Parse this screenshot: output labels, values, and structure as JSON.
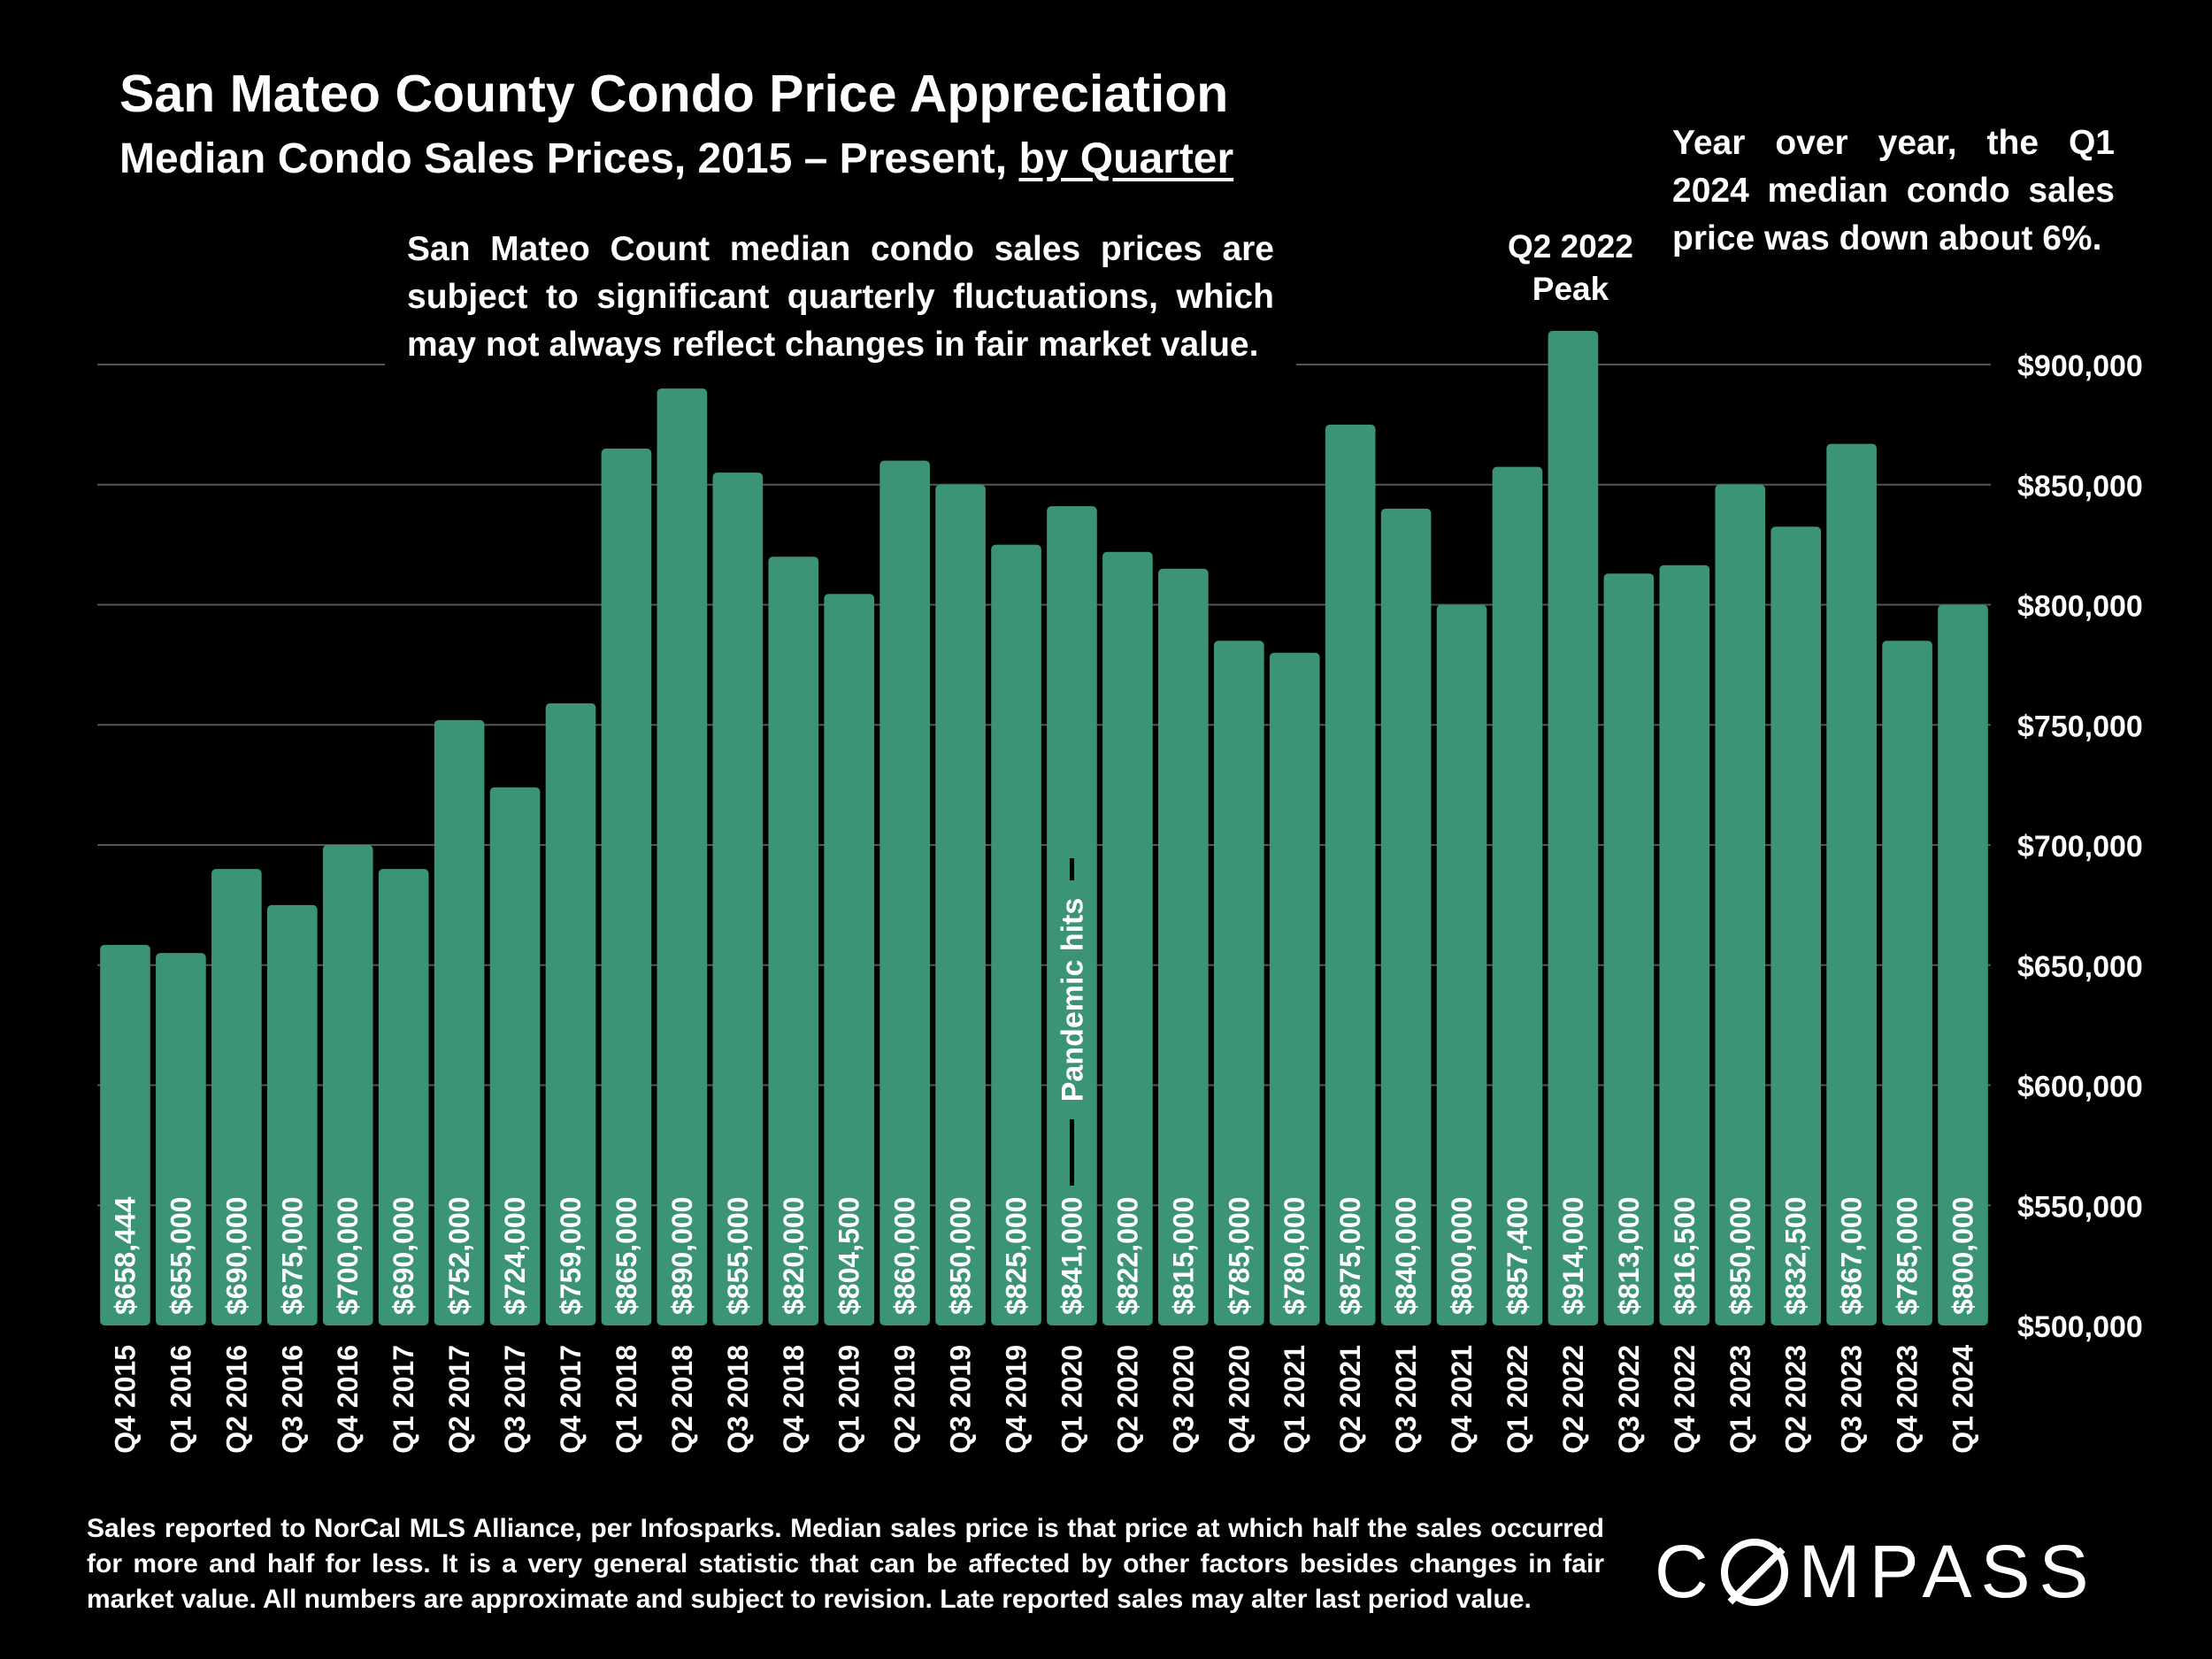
{
  "header": {
    "title": "San Mateo County Condo Price Appreciation",
    "subtitle_prefix": "Median Condo Sales Prices, 2015 – Present, ",
    "subtitle_link": "by Quarter"
  },
  "notes": {
    "main": "San Mateo Count median condo sales prices are subject to significant quarterly fluctuations, which may not always reflect changes in fair market value.",
    "yoy": "Year over year, the Q1 2024 median condo sales price was down about 6%.",
    "peak_line1": "Q2 2022",
    "peak_line2": "Peak",
    "pandemic": "Pandemic hits"
  },
  "footer": {
    "text": "Sales reported to NorCal MLS Alliance, per Infosparks. Median sales price is that price at which half the sales occurred for more and half for less. It is a very general statistic that can be affected by other factors besides changes in fair market value. All numbers are approximate and subject to revision. Late reported sales may alter last period value."
  },
  "logo": {
    "part1": "C",
    "part2": "MPASS"
  },
  "colors": {
    "bar": "#3b9477",
    "background": "#000000",
    "text": "#ffffff",
    "grid": "#555555"
  },
  "chart_data": {
    "type": "bar",
    "title": "San Mateo County Condo Price Appreciation",
    "categories": [
      "Q4 2015",
      "Q1 2016",
      "Q2 2016",
      "Q3 2016",
      "Q4 2016",
      "Q1 2017",
      "Q2 2017",
      "Q3 2017",
      "Q4 2017",
      "Q1 2018",
      "Q2 2018",
      "Q3 2018",
      "Q4 2018",
      "Q1 2019",
      "Q2 2019",
      "Q3 2019",
      "Q4 2019",
      "Q1 2020",
      "Q2 2020",
      "Q3 2020",
      "Q4 2020",
      "Q1 2021",
      "Q2 2021",
      "Q3 2021",
      "Q4 2021",
      "Q1 2022",
      "Q2 2022",
      "Q3 2022",
      "Q4 2022",
      "Q1 2023",
      "Q2 2023",
      "Q3 2023",
      "Q4 2023",
      "Q1 2024"
    ],
    "values": [
      658444,
      655000,
      690000,
      675000,
      700000,
      690000,
      752000,
      724000,
      759000,
      865000,
      890000,
      855000,
      820000,
      804500,
      860000,
      850000,
      825000,
      841000,
      822000,
      815000,
      785000,
      780000,
      875000,
      840000,
      800000,
      857400,
      914000,
      813000,
      816500,
      850000,
      832500,
      867000,
      785000,
      800000
    ],
    "value_labels": [
      "$658,444",
      "$655,000",
      "$690,000",
      "$675,000",
      "$700,000",
      "$690,000",
      "$752,000",
      "$724,000",
      "$759,000",
      "$865,000",
      "$890,000",
      "$855,000",
      "$820,000",
      "$804,500",
      "$860,000",
      "$850,000",
      "$825,000",
      "$841,000",
      "$822,000",
      "$815,000",
      "$785,000",
      "$780,000",
      "$875,000",
      "$840,000",
      "$800,000",
      "$857,400",
      "$914,000",
      "$813,000",
      "$816,500",
      "$850,000",
      "$832,500",
      "$867,000",
      "$785,000",
      "$800,000"
    ],
    "ylim": [
      500000,
      900000
    ],
    "yticks": [
      500000,
      550000,
      600000,
      650000,
      700000,
      750000,
      800000,
      850000,
      900000
    ],
    "ytick_labels": [
      "$500,000",
      "$550,000",
      "$600,000",
      "$650,000",
      "$700,000",
      "$750,000",
      "$800,000",
      "$850,000",
      "$900,000"
    ],
    "yaxis_position": "right",
    "grid": true,
    "xlabel": "",
    "ylabel": ""
  }
}
